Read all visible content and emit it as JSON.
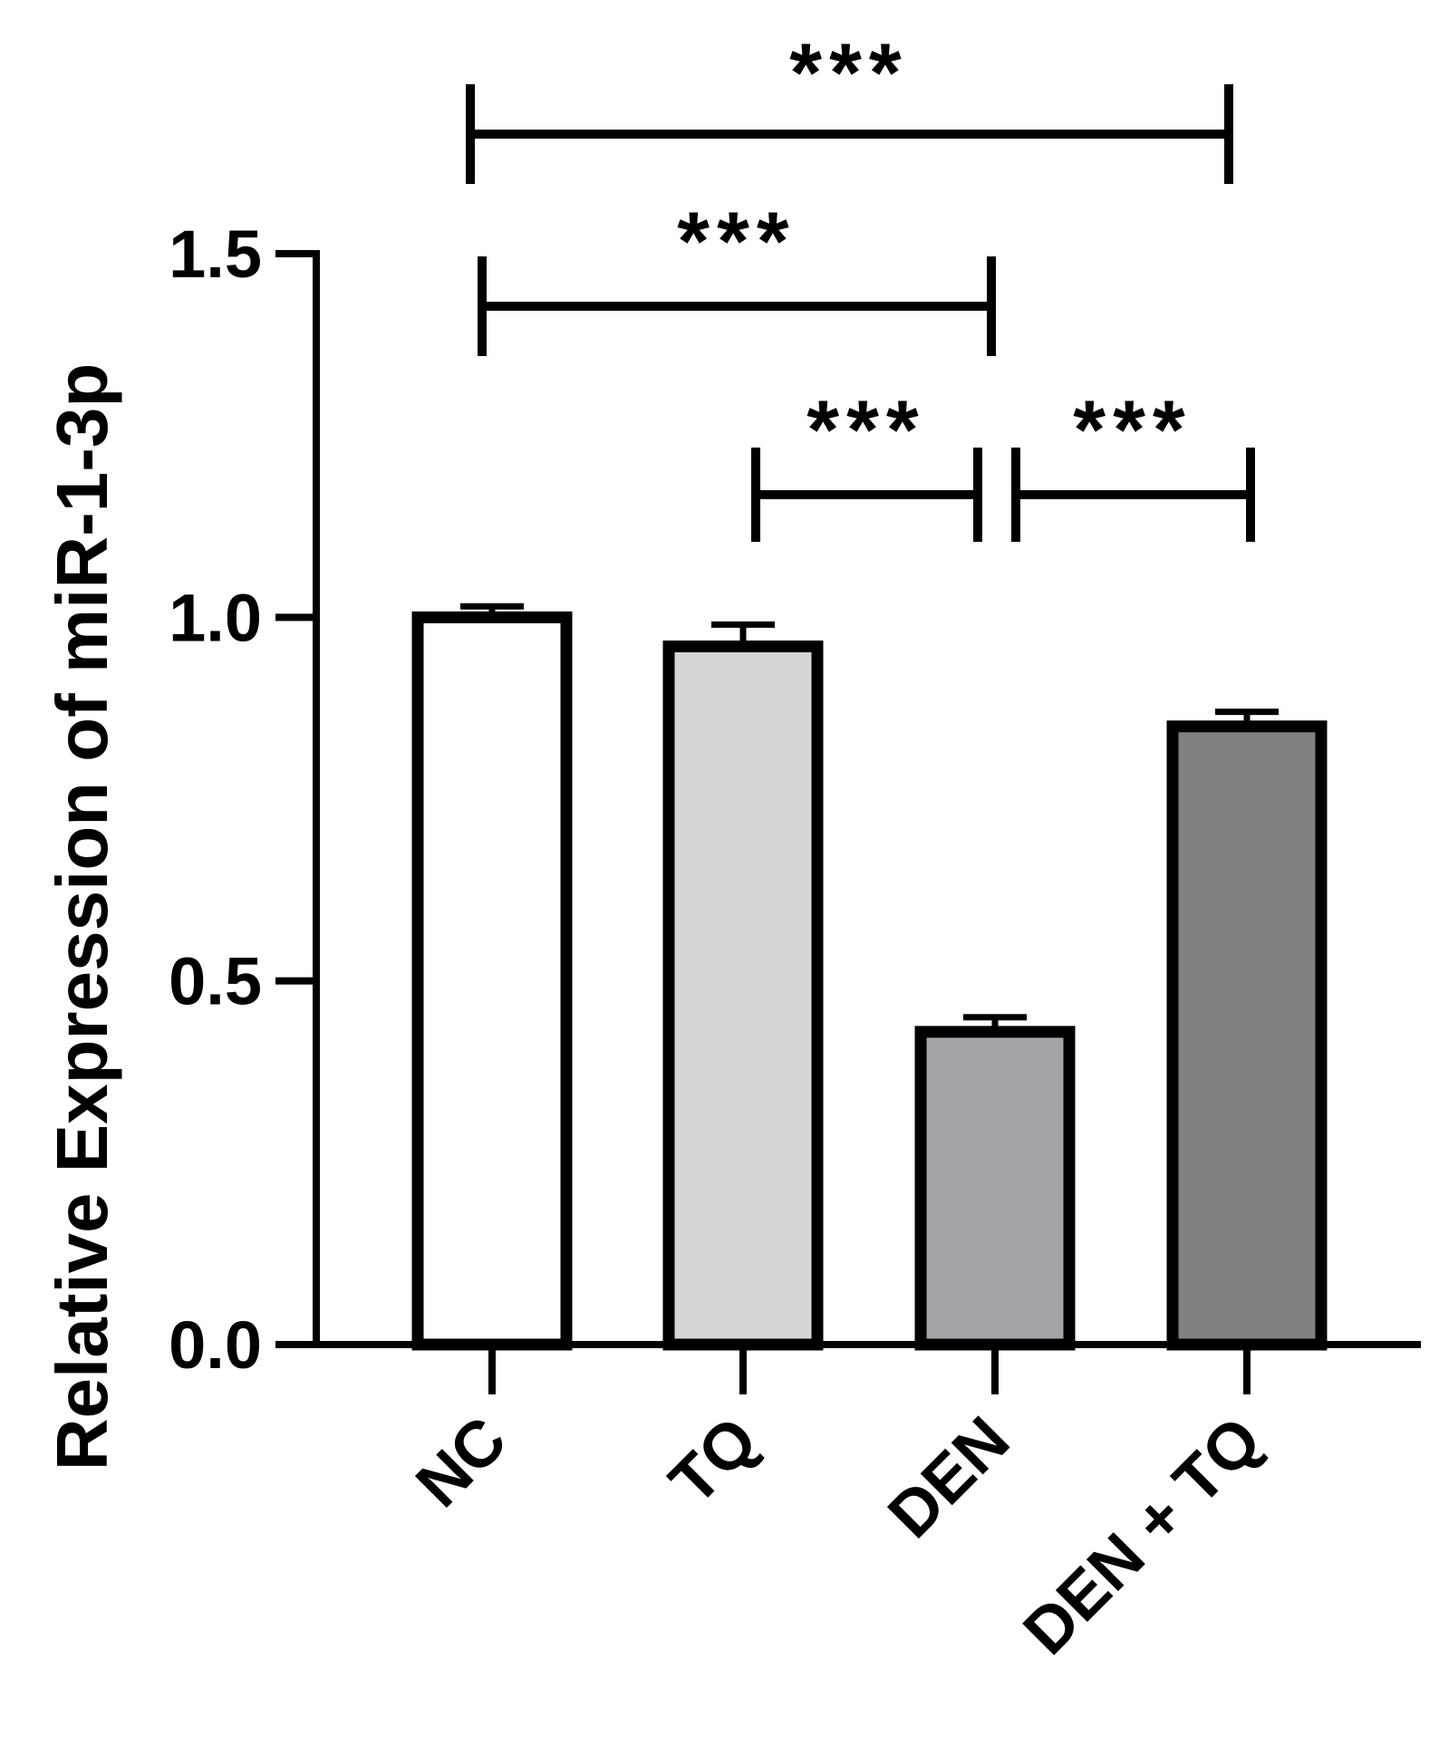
{
  "chart_data": {
    "type": "bar",
    "title": "",
    "xlabel": "",
    "ylabel": "Relative Expression of miR-1-3p",
    "ylim": [
      0,
      1.5
    ],
    "yticks": [
      "0.0",
      "0.5",
      "1.0",
      "1.5"
    ],
    "grid": false,
    "categories": [
      "NC",
      "TQ",
      "DEN",
      "DEN + TQ"
    ],
    "values": [
      1.0,
      0.96,
      0.43,
      0.85
    ],
    "errors": [
      0.015,
      0.03,
      0.02,
      0.02
    ],
    "colors": [
      "#ffffff",
      "#d6d6d6",
      "#a3a3a8",
      "#808080"
    ],
    "significance": [
      {
        "from": 0,
        "to": 3,
        "label": "***"
      },
      {
        "from": 0,
        "to": 2,
        "label": "***"
      },
      {
        "from": 1,
        "to": 2,
        "label": "***"
      },
      {
        "from": 2,
        "to": 3,
        "label": "***"
      }
    ]
  }
}
